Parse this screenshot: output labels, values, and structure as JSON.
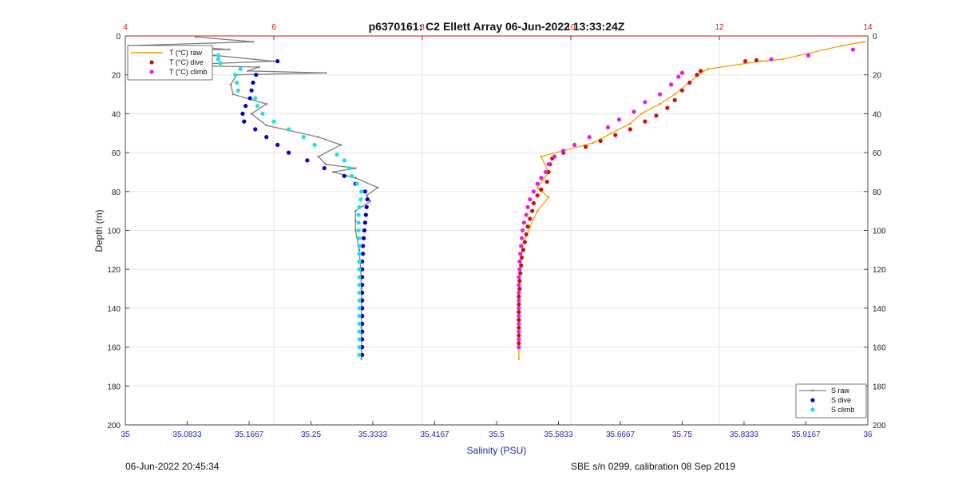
{
  "chart_data": {
    "type": "scatter",
    "title": "p6370161: C2 Ellett Array 06-Jun-2022 13:33:24Z",
    "xlabel": "Salinity (PSU)",
    "ylabel": "Depth (m)",
    "xlim": [
      35,
      36
    ],
    "ylim": [
      0,
      200
    ],
    "x_ticks": [
      "35",
      "35.0833",
      "35.1667",
      "35.25",
      "35.3333",
      "35.4167",
      "35.5",
      "35.5833",
      "35.6667",
      "35.75",
      "35.8333",
      "35.9167",
      "36"
    ],
    "x_tick_values": [
      35,
      35.0833,
      35.1667,
      35.25,
      35.3333,
      35.4167,
      35.5,
      35.5833,
      35.6667,
      35.75,
      35.8333,
      35.9167,
      36
    ],
    "x2lim": [
      4,
      14
    ],
    "x2_ticks": [
      "4",
      "6",
      "8",
      "10",
      "12",
      "14"
    ],
    "x2_tick_values": [
      4,
      6,
      8,
      10,
      12,
      14
    ],
    "y_ticks": [
      "0",
      "20",
      "40",
      "60",
      "80",
      "100",
      "120",
      "140",
      "160",
      "180",
      "200"
    ],
    "y_tick_values": [
      0,
      20,
      40,
      60,
      80,
      100,
      120,
      140,
      160,
      180,
      200
    ],
    "grid": true,
    "legend_left": {
      "placement": "top-left",
      "entries": [
        {
          "label": "T (°C) raw",
          "color": "#f0a000",
          "marker": "line"
        },
        {
          "label": "T (°C) dive",
          "color": "#cc1010",
          "marker": "dot"
        },
        {
          "label": "T (°C) climb",
          "color": "#e020e0",
          "marker": "dot"
        }
      ]
    },
    "legend_right": {
      "placement": "bottom-right",
      "entries": [
        {
          "label": "S raw",
          "color": "#808080",
          "marker": "line"
        },
        {
          "label": "S dive",
          "color": "#0000c8",
          "marker": "dot"
        },
        {
          "label": "S climb",
          "color": "#20e0e0",
          "marker": "dot"
        }
      ]
    },
    "series": [
      {
        "name": "S raw",
        "axis": "salinity",
        "color": "#808080",
        "style": "line",
        "points": [
          [
            35.095,
            0.5
          ],
          [
            35.172,
            3
          ],
          [
            35.005,
            5
          ],
          [
            35.09,
            5.5
          ],
          [
            35.14,
            7
          ],
          [
            35.02,
            8
          ],
          [
            35.12,
            10
          ],
          [
            35.2,
            13
          ],
          [
            35.06,
            15
          ],
          [
            35.18,
            16
          ],
          [
            35.165,
            18
          ],
          [
            35.27,
            19
          ],
          [
            35.15,
            20
          ],
          [
            35.142,
            25
          ],
          [
            35.145,
            30
          ],
          [
            35.19,
            35
          ],
          [
            35.17,
            40
          ],
          [
            35.19,
            46
          ],
          [
            35.26,
            52
          ],
          [
            35.29,
            56
          ],
          [
            35.26,
            62
          ],
          [
            35.27,
            66
          ],
          [
            35.31,
            68
          ],
          [
            35.28,
            70
          ],
          [
            35.31,
            73
          ],
          [
            35.34,
            78
          ],
          [
            35.325,
            82
          ],
          [
            35.33,
            85
          ],
          [
            35.31,
            90
          ],
          [
            35.31,
            95
          ],
          [
            35.31,
            100
          ],
          [
            35.315,
            110
          ],
          [
            35.317,
            120
          ],
          [
            35.318,
            130
          ],
          [
            35.318,
            140
          ],
          [
            35.318,
            150
          ],
          [
            35.318,
            160
          ],
          [
            35.318,
            166
          ]
        ]
      },
      {
        "name": "S dive",
        "axis": "salinity",
        "color": "#0000c8",
        "style": "dot",
        "points": [
          [
            35.205,
            13
          ],
          [
            35.176,
            20
          ],
          [
            35.172,
            24
          ],
          [
            35.17,
            28
          ],
          [
            35.168,
            32
          ],
          [
            35.162,
            36
          ],
          [
            35.158,
            40
          ],
          [
            35.16,
            44
          ],
          [
            35.175,
            48
          ],
          [
            35.19,
            52
          ],
          [
            35.205,
            56
          ],
          [
            35.22,
            60
          ],
          [
            35.245,
            64
          ],
          [
            35.268,
            68
          ],
          [
            35.295,
            72
          ],
          [
            35.31,
            76
          ],
          [
            35.323,
            80
          ],
          [
            35.326,
            84
          ],
          [
            35.325,
            88
          ],
          [
            35.324,
            92
          ],
          [
            35.323,
            96
          ],
          [
            35.322,
            100
          ],
          [
            35.321,
            104
          ],
          [
            35.32,
            108
          ],
          [
            35.32,
            112
          ],
          [
            35.319,
            116
          ],
          [
            35.319,
            120
          ],
          [
            35.319,
            124
          ],
          [
            35.319,
            128
          ],
          [
            35.319,
            132
          ],
          [
            35.319,
            136
          ],
          [
            35.319,
            140
          ],
          [
            35.319,
            144
          ],
          [
            35.319,
            148
          ],
          [
            35.319,
            152
          ],
          [
            35.319,
            156
          ],
          [
            35.319,
            160
          ],
          [
            35.319,
            164
          ]
        ]
      },
      {
        "name": "S climb",
        "axis": "salinity",
        "color": "#20e0e0",
        "style": "dot",
        "points": [
          [
            35.1,
            7
          ],
          [
            35.125,
            10
          ],
          [
            35.125,
            12
          ],
          [
            35.128,
            14
          ],
          [
            35.155,
            17
          ],
          [
            35.148,
            20
          ],
          [
            35.15,
            24
          ],
          [
            35.152,
            28
          ],
          [
            35.175,
            32
          ],
          [
            35.178,
            36
          ],
          [
            35.185,
            40
          ],
          [
            35.2,
            44
          ],
          [
            35.22,
            48
          ],
          [
            35.24,
            52
          ],
          [
            35.255,
            56
          ],
          [
            35.285,
            61
          ],
          [
            35.295,
            64
          ],
          [
            35.302,
            68
          ],
          [
            35.305,
            72
          ],
          [
            35.312,
            76
          ],
          [
            35.318,
            80
          ],
          [
            35.317,
            84
          ],
          [
            35.315,
            88
          ],
          [
            35.314,
            92
          ],
          [
            35.314,
            96
          ],
          [
            35.314,
            100
          ],
          [
            35.315,
            104
          ],
          [
            35.315,
            108
          ],
          [
            35.315,
            112
          ],
          [
            35.315,
            116
          ],
          [
            35.315,
            120
          ],
          [
            35.315,
            124
          ],
          [
            35.315,
            128
          ],
          [
            35.315,
            132
          ],
          [
            35.315,
            136
          ],
          [
            35.315,
            140
          ],
          [
            35.315,
            144
          ],
          [
            35.315,
            148
          ],
          [
            35.315,
            152
          ],
          [
            35.315,
            156
          ],
          [
            35.315,
            160
          ],
          [
            35.315,
            164
          ]
        ]
      },
      {
        "name": "T (°C) raw",
        "axis": "temperature",
        "color": "#f0a000",
        "style": "line",
        "points": [
          [
            13.95,
            3
          ],
          [
            13.65,
            5
          ],
          [
            12.85,
            12
          ],
          [
            12.55,
            13
          ],
          [
            11.85,
            17
          ],
          [
            11.75,
            19
          ],
          [
            11.4,
            30
          ],
          [
            11.2,
            35
          ],
          [
            10.95,
            40
          ],
          [
            10.8,
            45
          ],
          [
            10.55,
            50
          ],
          [
            10.3,
            55
          ],
          [
            9.6,
            62
          ],
          [
            9.7,
            70
          ],
          [
            9.55,
            78
          ],
          [
            9.7,
            83
          ],
          [
            9.55,
            90
          ],
          [
            9.45,
            98
          ],
          [
            9.35,
            108
          ],
          [
            9.32,
            120
          ],
          [
            9.3,
            135
          ],
          [
            9.3,
            150
          ],
          [
            9.3,
            160
          ],
          [
            9.3,
            166
          ]
        ]
      },
      {
        "name": "T (°C) dive",
        "axis": "temperature",
        "color": "#cc1010",
        "style": "dot",
        "points": [
          [
            12.5,
            12.5
          ],
          [
            12.35,
            13
          ],
          [
            11.75,
            18
          ],
          [
            11.7,
            20
          ],
          [
            11.6,
            24
          ],
          [
            11.5,
            28
          ],
          [
            11.4,
            33
          ],
          [
            11.3,
            37
          ],
          [
            11.15,
            41
          ],
          [
            11.0,
            44
          ],
          [
            10.8,
            48
          ],
          [
            10.6,
            51
          ],
          [
            10.4,
            54
          ],
          [
            10.2,
            57
          ],
          [
            9.9,
            60
          ],
          [
            9.75,
            63
          ],
          [
            9.72,
            66
          ],
          [
            9.7,
            70
          ],
          [
            9.68,
            75
          ],
          [
            9.6,
            79
          ],
          [
            9.55,
            82
          ],
          [
            9.5,
            86
          ],
          [
            9.48,
            90
          ],
          [
            9.45,
            94
          ],
          [
            9.42,
            98
          ],
          [
            9.4,
            102
          ],
          [
            9.38,
            106
          ],
          [
            9.36,
            110
          ],
          [
            9.34,
            114
          ],
          [
            9.33,
            118
          ],
          [
            9.32,
            122
          ],
          [
            9.31,
            126
          ],
          [
            9.31,
            130
          ],
          [
            9.3,
            134
          ],
          [
            9.3,
            138
          ],
          [
            9.3,
            142
          ],
          [
            9.3,
            146
          ],
          [
            9.3,
            150
          ],
          [
            9.3,
            154
          ],
          [
            9.3,
            158
          ]
        ]
      },
      {
        "name": "T (°C) climb",
        "axis": "temperature",
        "color": "#e020e0",
        "style": "dot",
        "points": [
          [
            13.8,
            7
          ],
          [
            13.2,
            10
          ],
          [
            12.7,
            12
          ],
          [
            11.5,
            19
          ],
          [
            11.45,
            21
          ],
          [
            11.35,
            25
          ],
          [
            11.2,
            30
          ],
          [
            11.0,
            34
          ],
          [
            10.85,
            39
          ],
          [
            10.65,
            43
          ],
          [
            10.5,
            47
          ],
          [
            10.25,
            52
          ],
          [
            10.05,
            56
          ],
          [
            9.9,
            59
          ],
          [
            9.78,
            62
          ],
          [
            9.7,
            66
          ],
          [
            9.66,
            70
          ],
          [
            9.6,
            73
          ],
          [
            9.55,
            76
          ],
          [
            9.5,
            80
          ],
          [
            9.45,
            84
          ],
          [
            9.42,
            88
          ],
          [
            9.4,
            92
          ],
          [
            9.37,
            96
          ],
          [
            9.35,
            100
          ],
          [
            9.34,
            104
          ],
          [
            9.33,
            108
          ],
          [
            9.32,
            112
          ],
          [
            9.31,
            116
          ],
          [
            9.31,
            120
          ],
          [
            9.3,
            124
          ],
          [
            9.3,
            128
          ],
          [
            9.3,
            132
          ],
          [
            9.3,
            136
          ],
          [
            9.3,
            140
          ],
          [
            9.3,
            144
          ],
          [
            9.3,
            148
          ],
          [
            9.3,
            152
          ],
          [
            9.3,
            156
          ],
          [
            9.3,
            160
          ]
        ]
      }
    ]
  },
  "footer": {
    "left": "06-Jun-2022 20:45:34",
    "right": "SBE s/n 0299, calibration 08 Sep 2019"
  }
}
